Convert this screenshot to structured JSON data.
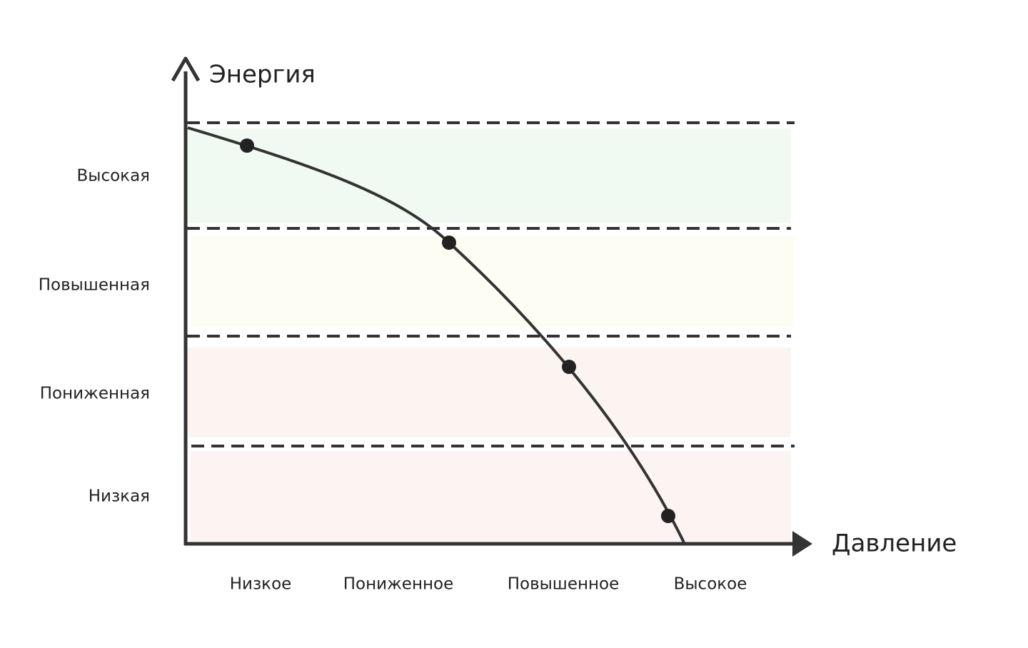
{
  "axes": {
    "y_label": "Энергия",
    "x_label": "Давление"
  },
  "y_levels": [
    "Высокая",
    "Повышенная",
    "Пониженная",
    "Низкая"
  ],
  "x_levels": [
    "Низкое",
    "Пониженное",
    "Повышенное",
    "Высокое"
  ]
}
